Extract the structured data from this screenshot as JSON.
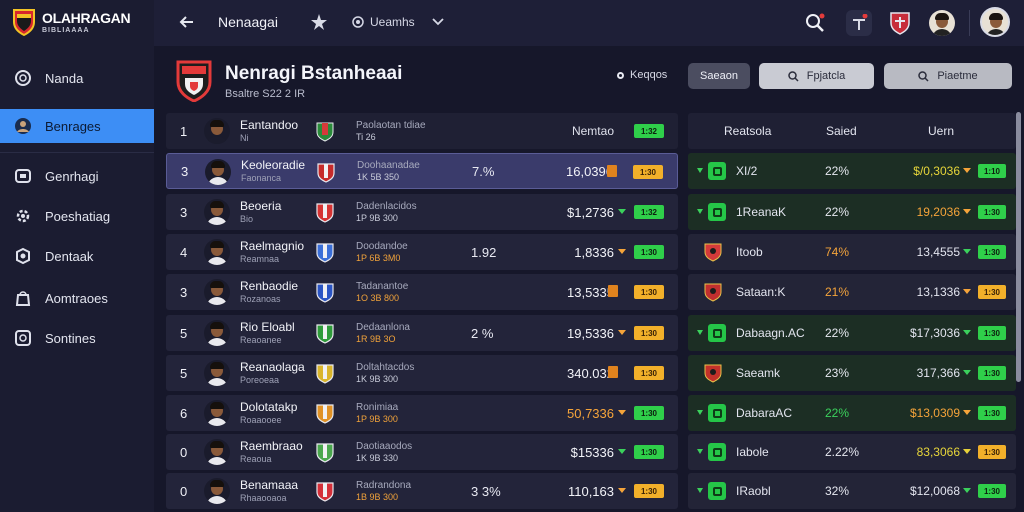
{
  "app": {
    "title": "OLAHRAGAN",
    "subtitle": "BIBLIAAAA"
  },
  "sidebar": {
    "items": [
      {
        "label": "Nanda",
        "icon": "circle-icon"
      },
      {
        "label": "Benrages",
        "icon": "user-circle-icon"
      },
      {
        "label": "Genrhagi",
        "icon": "card-icon"
      },
      {
        "label": "Poeshatiag",
        "icon": "gear-icon"
      },
      {
        "label": "Dentaak",
        "icon": "settings-icon"
      },
      {
        "label": "Aomtraoes",
        "icon": "bag-icon"
      },
      {
        "label": "Sontines",
        "icon": "gear-box-icon"
      }
    ]
  },
  "topbar": {
    "title": "Nenaagai",
    "menu_label": "Ueamhs"
  },
  "header": {
    "team_name": "Nenragi Bstanheaai",
    "team_sub": "Bsaltre S22 2 IR",
    "status": "Keqqos",
    "btn1": "Saeaon",
    "btn2": "Fpjatcla",
    "btn3": "Piaetme"
  },
  "left_table": {
    "head_name": "Eantandoo",
    "head_sub": "Ni",
    "head_info1": "Paolaotan tdiae",
    "head_info2": "Ti 26",
    "head_value_label": "Nemtao",
    "head_badge": "1:32",
    "rows": [
      {
        "rank": "3",
        "name": "Keoleoradie",
        "sub": "Faonanca",
        "info1": "Doohaanadae",
        "info2": "1K 5B 350",
        "pct": "7.%",
        "value": "16,0396",
        "badge": "1:30",
        "crest": "#c62b2b"
      },
      {
        "rank": "3",
        "name": "Beoeria",
        "sub": "Bio",
        "info1": "Dadenlacidos",
        "info2": "1P 9B 300",
        "pct": "",
        "value": "$1,2736",
        "badge": "1:32",
        "crest": "#d53333"
      },
      {
        "rank": "4",
        "name": "Raelmagnio",
        "sub": "Reamnaa",
        "info1": "Doodandoe",
        "info2": "1P 6B 3M0",
        "pct": "1.92",
        "value": "1,8336",
        "badge": "1:30",
        "crest": "#3b6fd8"
      },
      {
        "rank": "3",
        "name": "Renbaodie",
        "sub": "Rozanoas",
        "info1": "Tadanantoe",
        "info2": "1O 3B 800",
        "pct": "",
        "value": "13,5335",
        "badge": "1:30",
        "crest": "#2b55c4"
      },
      {
        "rank": "5",
        "name": "Rio Eloabl",
        "sub": "Reaoanee",
        "info1": "Dedaanlona",
        "info2": "1R 9B 3O",
        "pct": "2 %",
        "value": "19,5336",
        "badge": "1:30",
        "crest": "#2e9b3a"
      },
      {
        "rank": "5",
        "name": "Reanaolaga",
        "sub": "Poreoeaa",
        "info1": "Doltahtacdos",
        "info2": "1K 9B 300",
        "pct": "",
        "value": "340.032",
        "badge": "1:30",
        "crest": "#d9b52c"
      },
      {
        "rank": "6",
        "name": "Dolotatakp",
        "sub": "Roaaooee",
        "info1": "Ronimiaa",
        "info2": "1P 9B 300",
        "pct": "",
        "value": "50,7336",
        "badge": "1:30",
        "crest": "#e09226"
      },
      {
        "rank": "0",
        "name": "Raembraao",
        "sub": "Reaoua",
        "info1": "Daotiaaodos",
        "info2": "1K 9B 330",
        "pct": "",
        "value": "$15336",
        "badge": "1:30",
        "crest": "#4aa74d"
      },
      {
        "rank": "0",
        "name": "Benamaaa",
        "sub": "Rhaaooaoa",
        "info1": "Radrandona",
        "info2": "1B 9B 300",
        "pct": "3 3%",
        "value": "110,163",
        "badge": "1:30",
        "crest": "#d42f39"
      }
    ]
  },
  "right_table": {
    "head_name": "Reatsola",
    "head_pct": "Saied",
    "head_val": "Uern",
    "rows": [
      {
        "name": "XI/2",
        "pct": "22%",
        "value": "$/0,3036",
        "badge": "1:10",
        "kind": "badge",
        "pctColor": "#e6e8f0",
        "valColor": "yellow",
        "arrow": "orange"
      },
      {
        "name": "1ReanaK",
        "pct": "22%",
        "value": "19,2036",
        "badge": "1:30",
        "kind": "badge",
        "pctColor": "#e6e8f0",
        "valColor": "orange",
        "arrow": "orange"
      },
      {
        "name": "Itoob",
        "pct": "74%",
        "value": "13,4555",
        "badge": "1:30",
        "kind": "crest",
        "pctColor": "#f5a43a",
        "valColor": "white",
        "arrow": "green"
      },
      {
        "name": "Sataan:K",
        "pct": "21%",
        "value": "13,1336",
        "badge": "1:30",
        "kind": "crest2",
        "pctColor": "#f5a43a",
        "valColor": "white",
        "arrow": "orange"
      },
      {
        "name": "Dabaagn.AC",
        "pct": "22%",
        "value": "$17,3036",
        "badge": "1:30",
        "kind": "badge",
        "pctColor": "#e6e8f0",
        "valColor": "white",
        "arrow": "green"
      },
      {
        "name": "Saeamk",
        "pct": "23%",
        "value": "317,366",
        "badge": "1:30",
        "kind": "crest3",
        "pctColor": "#e6e8f0",
        "valColor": "white",
        "arrow": "green"
      },
      {
        "name": "DabaraAC",
        "pct": "22%",
        "value": "$13,0309",
        "badge": "1:30",
        "kind": "badge",
        "pctColor": "#3bd15c",
        "valColor": "orange",
        "arrow": "orange"
      },
      {
        "name": "Iabole",
        "pct": "2.22%",
        "value": "83,3066",
        "badge": "1:30",
        "kind": "badge",
        "pctColor": "#e6e8f0",
        "valColor": "yellow",
        "arrow": "yellow"
      },
      {
        "name": "IRaobl",
        "pct": "32%",
        "value": "$12,0068",
        "badge": "1:30",
        "kind": "badge",
        "pctColor": "#e6e8f0",
        "valColor": "white",
        "arrow": "green"
      }
    ]
  },
  "colors": {
    "accent": "#3d8ef5",
    "green": "#2fcf4a",
    "orange": "#f5a43a",
    "bg": "#16172a"
  }
}
